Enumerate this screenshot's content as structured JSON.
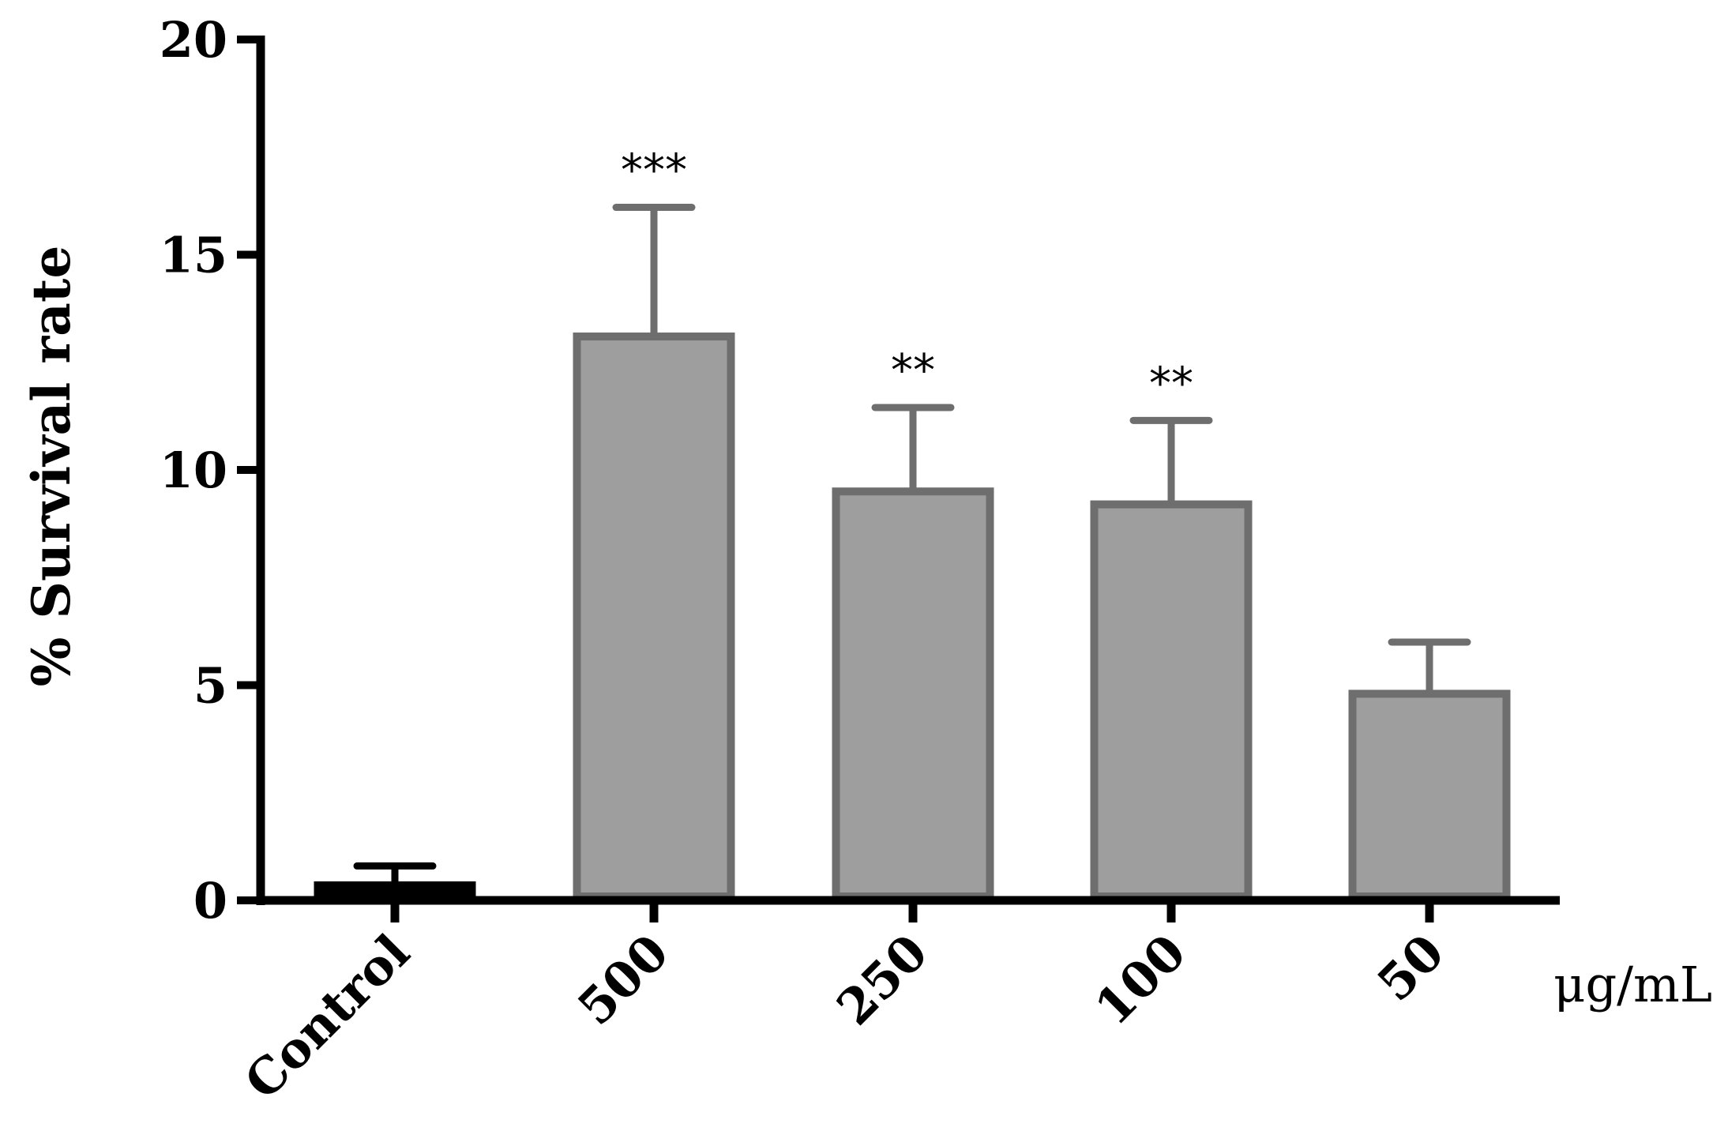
{
  "chart_data": {
    "type": "bar",
    "title": "",
    "xlabel": "",
    "ylabel": "% Survival  rate",
    "x_unit_label": "μg/mL",
    "categories": [
      "Control",
      "500",
      "250",
      "100",
      "50"
    ],
    "values": [
      0.35,
      13.1,
      9.5,
      9.2,
      4.8
    ],
    "errors": [
      0.45,
      3.0,
      1.95,
      1.95,
      1.2
    ],
    "annotations": [
      "",
      "***",
      "**",
      "**",
      ""
    ],
    "ylim": [
      0,
      20
    ],
    "yticks": [
      0,
      5,
      10,
      15,
      20
    ],
    "grid": false,
    "legend": "none",
    "colors": {
      "control_fill": "#000000",
      "control_edge": "#000000",
      "bar_fill": "#9e9e9e",
      "bar_edge": "#6e6e6e",
      "axis": "#000000"
    }
  }
}
